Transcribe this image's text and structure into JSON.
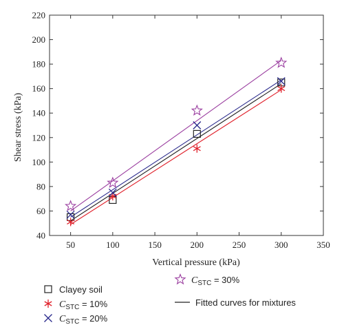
{
  "chart_data": {
    "type": "scatter",
    "xlabel": "Vertical pressure (kPa)",
    "ylabel": "Shear stress (kPa)",
    "xlim": [
      25,
      350
    ],
    "ylim": [
      40,
      220
    ],
    "xticks": [
      50,
      100,
      150,
      200,
      250,
      300,
      350
    ],
    "yticks": [
      40,
      60,
      80,
      100,
      120,
      140,
      160,
      180,
      200,
      220
    ],
    "legend_position": "bottom",
    "series": [
      {
        "key": "clayey",
        "label_main": "Clayey soil",
        "marker": "square",
        "color": "#222222",
        "x": [
          50,
          100,
          200,
          300
        ],
        "y": [
          55,
          69,
          123,
          165
        ],
        "fit": [
          52,
          164
        ]
      },
      {
        "key": "stc10",
        "label_main": "C",
        "label_sub": "STC",
        "label_rest": " = 10%",
        "marker": "asterisk",
        "color": "#e0202a",
        "x": [
          50,
          100,
          200,
          300
        ],
        "y": [
          51,
          72,
          111,
          160
        ],
        "fit": [
          49,
          159
        ]
      },
      {
        "key": "stc20",
        "label_main": "C",
        "label_sub": "STC",
        "label_rest": " = 20%",
        "marker": "cross",
        "color": "#2a2a8c",
        "x": [
          50,
          100,
          200,
          300
        ],
        "y": [
          57,
          75,
          130,
          166
        ],
        "fit": [
          55,
          167
        ]
      },
      {
        "key": "stc30",
        "label_main": "C",
        "label_sub": "STC",
        "label_rest": " = 30%",
        "marker": "star",
        "color": "#9b3fa0",
        "x": [
          50,
          100,
          200,
          300
        ],
        "y": [
          64,
          83,
          142,
          181
        ],
        "fit": [
          60,
          183
        ]
      }
    ],
    "fitted_legend_label": "Fitted curves for mixtures",
    "fitted_legend_color": "#222222"
  }
}
